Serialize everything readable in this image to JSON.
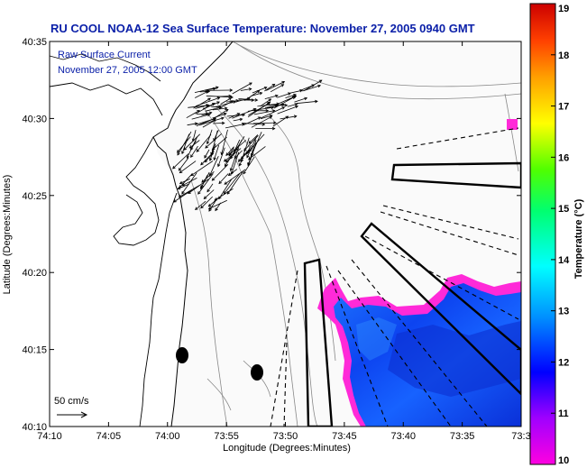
{
  "chart_data": {
    "type": "heatmap",
    "title": "RU COOL  NOAA-12  Sea Surface Temperature:  November 27, 2005 0940 GMT",
    "annotations": [
      "Raw Surface Current",
      "November 27, 2005 12:00 GMT"
    ],
    "xlabel": "Longitude (Degrees:Minutes)",
    "ylabel": "Latitude (Degrees:Minutes)",
    "x_ticks": [
      "74:10",
      "74:05",
      "74:00",
      "73:55",
      "73:50",
      "73:45",
      "73:40",
      "73:35",
      "73:3"
    ],
    "y_ticks": [
      "40:10",
      "40:15",
      "40:20",
      "40:25",
      "40:30",
      "40:35"
    ],
    "colorbar": {
      "label": "Temperature (°C)",
      "min": 10,
      "max": 19,
      "ticks": [
        "10",
        "11",
        "12",
        "13",
        "14",
        "15",
        "16",
        "17",
        "18",
        "19"
      ],
      "colors": [
        "#ff00e0",
        "#a000ff",
        "#0000ff",
        "#0090ff",
        "#00ffff",
        "#00ff70",
        "#50ff00",
        "#ffff00",
        "#ffa000",
        "#ff4000",
        "#cc0000"
      ]
    },
    "scale_label": "50 cm/s",
    "water_temperature_range_c": [
      10.5,
      12.3
    ]
  },
  "colors": {
    "title": "#0a1fa8",
    "land": "#ffffff",
    "ocean_blank": "#fafafa",
    "contour": "#888888",
    "coast": "#000000"
  }
}
